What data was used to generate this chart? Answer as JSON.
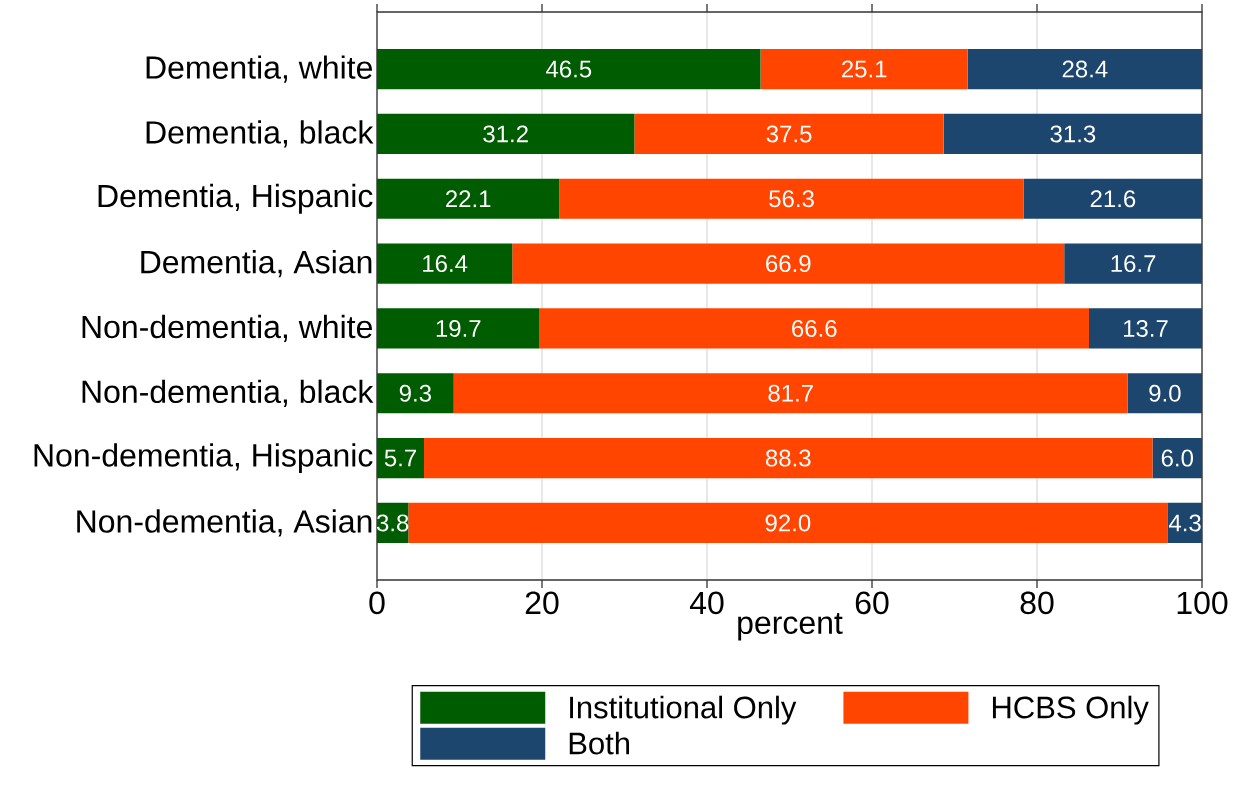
{
  "chart_data": {
    "type": "bar",
    "orientation": "horizontal",
    "stacked": true,
    "xlabel": "percent",
    "categories": [
      "Dementia, white",
      "Dementia, black",
      "Dementia, Hispanic",
      "Dementia, Asian",
      "Non-dementia, white",
      "Non-dementia, black",
      "Non-dementia, Hispanic",
      "Non-dementia, Asian"
    ],
    "series": [
      {
        "name": "Institutional Only",
        "color": "#005c00",
        "values": [
          46.5,
          31.2,
          22.1,
          16.4,
          19.7,
          9.3,
          5.7,
          3.8
        ],
        "value_labels": [
          "46.5",
          "31.2",
          "22.1",
          "16.4",
          "19.7",
          "9.3",
          "5.7",
          "3.8"
        ]
      },
      {
        "name": "HCBS Only",
        "color": "#ff4500",
        "values": [
          25.1,
          37.5,
          56.3,
          66.9,
          66.6,
          81.7,
          88.3,
          92.0
        ],
        "value_labels": [
          "25.1",
          "37.5",
          "56.3",
          "66.9",
          "66.6",
          "81.7",
          "88.3",
          "92.0"
        ]
      },
      {
        "name": "Both",
        "color": "#1c466e",
        "values": [
          28.4,
          31.3,
          21.6,
          16.7,
          13.7,
          9.0,
          6.0,
          4.3
        ],
        "value_labels": [
          "28.4",
          "31.3",
          "21.6",
          "16.7",
          "13.7",
          "9.0",
          "6.0",
          "4.3"
        ]
      }
    ],
    "xlim": [
      0,
      100
    ],
    "xticks": [
      0,
      20,
      40,
      60,
      80,
      100
    ],
    "grid": "x",
    "legend": "bottom"
  }
}
